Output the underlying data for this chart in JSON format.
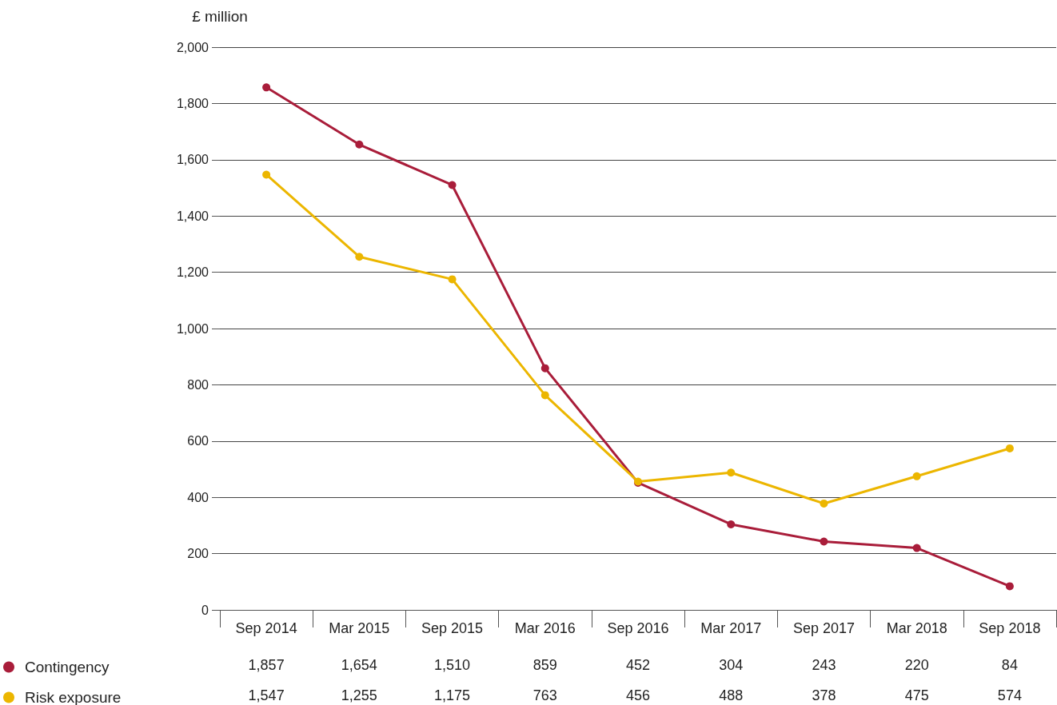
{
  "chart_data": {
    "type": "line",
    "ylabel": "£ million",
    "categories": [
      "Sep 2014",
      "Mar 2015",
      "Sep 2015",
      "Mar 2016",
      "Sep 2016",
      "Mar 2017",
      "Sep 2017",
      "Mar 2018",
      "Sep 2018"
    ],
    "series": [
      {
        "name": "Contingency",
        "color": "#a91d3a",
        "values": [
          1857,
          1654,
          1510,
          859,
          452,
          304,
          243,
          220,
          84
        ],
        "value_labels": [
          "1,857",
          "1,654",
          "1,510",
          "859",
          "452",
          "304",
          "243",
          "220",
          "84"
        ]
      },
      {
        "name": "Risk exposure",
        "color": "#ecb600",
        "values": [
          1547,
          1255,
          1175,
          763,
          456,
          488,
          378,
          475,
          574
        ],
        "value_labels": [
          "1,547",
          "1,255",
          "1,175",
          "763",
          "456",
          "488",
          "378",
          "475",
          "574"
        ]
      }
    ],
    "ylim": [
      0,
      2000
    ],
    "yticks": [
      0,
      200,
      400,
      600,
      800,
      {
        "value": 1000,
        "label": "1,000"
      },
      {
        "value": 1200,
        "label": "1,200"
      },
      {
        "value": 1400,
        "label": "1,400"
      },
      {
        "value": 1600,
        "label": "1,600"
      },
      {
        "value": 1800,
        "label": "1,800"
      },
      {
        "value": 2000,
        "label": "2,000"
      }
    ],
    "grid": "y",
    "legend": "bottom left",
    "marker": "circle",
    "line_style": "solid"
  }
}
